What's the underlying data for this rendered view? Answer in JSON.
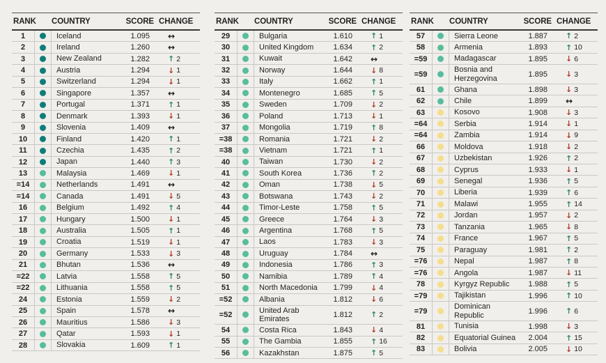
{
  "page": {
    "background": "#f0efeb"
  },
  "header": {
    "rank": "RANK",
    "country": "COUNTRY",
    "score": "SCORE",
    "change": "CHANGE"
  },
  "arrows": {
    "up": "↑",
    "down": "↓",
    "same": "↔"
  },
  "colors": {
    "tier_dark": "#0f7d7a",
    "tier_mid": "#57bd9d",
    "tier_yellow": "#f6dd8c",
    "up": "#2e8473",
    "down": "#b23a29",
    "same": "#1c1c1a",
    "text": "#231f20"
  },
  "tables": [
    {
      "rows": [
        [
          "1",
          "Iceland",
          "1.095",
          "same",
          "",
          "dark"
        ],
        [
          "2",
          "Ireland",
          "1.260",
          "same",
          "",
          "dark"
        ],
        [
          "3",
          "New Zealand",
          "1.282",
          "up",
          "2",
          "dark"
        ],
        [
          "4",
          "Austria",
          "1.294",
          "down",
          "1",
          "dark"
        ],
        [
          "5",
          "Switzerland",
          "1.294",
          "down",
          "1",
          "dark"
        ],
        [
          "6",
          "Singapore",
          "1.357",
          "same",
          "",
          "dark"
        ],
        [
          "7",
          "Portugal",
          "1.371",
          "up",
          "1",
          "dark"
        ],
        [
          "8",
          "Denmark",
          "1.393",
          "down",
          "1",
          "dark"
        ],
        [
          "9",
          "Slovenia",
          "1.409",
          "same",
          "",
          "dark"
        ],
        [
          "10",
          "Finland",
          "1.420",
          "up",
          "1",
          "dark"
        ],
        [
          "11",
          "Czechia",
          "1.435",
          "up",
          "2",
          "dark"
        ],
        [
          "12",
          "Japan",
          "1.440",
          "up",
          "3",
          "dark"
        ],
        [
          "13",
          "Malaysia",
          "1.469",
          "down",
          "1",
          "mid"
        ],
        [
          "=14",
          "Netherlands",
          "1.491",
          "same",
          "",
          "mid"
        ],
        [
          "=14",
          "Canada",
          "1.491",
          "down",
          "5",
          "mid"
        ],
        [
          "16",
          "Belgium",
          "1.492",
          "up",
          "4",
          "mid"
        ],
        [
          "17",
          "Hungary",
          "1.500",
          "down",
          "1",
          "mid"
        ],
        [
          "18",
          "Australia",
          "1.505",
          "up",
          "1",
          "mid"
        ],
        [
          "19",
          "Croatia",
          "1.519",
          "down",
          "1",
          "mid"
        ],
        [
          "20",
          "Germany",
          "1.533",
          "down",
          "3",
          "mid"
        ],
        [
          "21",
          "Bhutan",
          "1.536",
          "same",
          "",
          "mid"
        ],
        [
          "=22",
          "Latvia",
          "1.558",
          "up",
          "5",
          "mid"
        ],
        [
          "=22",
          "Lithuania",
          "1.558",
          "up",
          "5",
          "mid"
        ],
        [
          "24",
          "Estonia",
          "1.559",
          "down",
          "2",
          "mid"
        ],
        [
          "25",
          "Spain",
          "1.578",
          "same",
          "",
          "mid"
        ],
        [
          "26",
          "Mauritius",
          "1.586",
          "down",
          "3",
          "mid"
        ],
        [
          "27",
          "Qatar",
          "1.593",
          "down",
          "1",
          "mid"
        ],
        [
          "28",
          "Slovakia",
          "1.609",
          "up",
          "1",
          "mid"
        ]
      ]
    },
    {
      "rows": [
        [
          "29",
          "Bulgaria",
          "1.610",
          "up",
          "1",
          "mid"
        ],
        [
          "30",
          "United Kingdom",
          "1.634",
          "up",
          "2",
          "mid"
        ],
        [
          "31",
          "Kuwait",
          "1.642",
          "same",
          "",
          "mid"
        ],
        [
          "32",
          "Norway",
          "1.644",
          "down",
          "8",
          "mid"
        ],
        [
          "33",
          "Italy",
          "1.662",
          "up",
          "1",
          "mid"
        ],
        [
          "34",
          "Montenegro",
          "1.685",
          "up",
          "5",
          "mid"
        ],
        [
          "35",
          "Sweden",
          "1.709",
          "down",
          "2",
          "mid"
        ],
        [
          "36",
          "Poland",
          "1.713",
          "down",
          "1",
          "mid"
        ],
        [
          "37",
          "Mongolia",
          "1.719",
          "up",
          "8",
          "mid"
        ],
        [
          "=38",
          "Romania",
          "1.721",
          "down",
          "2",
          "mid"
        ],
        [
          "=38",
          "Vietnam",
          "1.721",
          "up",
          "1",
          "mid"
        ],
        [
          "40",
          "Taiwan",
          "1.730",
          "down",
          "2",
          "mid"
        ],
        [
          "41",
          "South Korea",
          "1.736",
          "up",
          "2",
          "mid"
        ],
        [
          "42",
          "Oman",
          "1.738",
          "down",
          "5",
          "mid"
        ],
        [
          "43",
          "Botswana",
          "1.743",
          "down",
          "2",
          "mid"
        ],
        [
          "44",
          "Timor-Leste",
          "1.758",
          "up",
          "5",
          "mid"
        ],
        [
          "45",
          "Greece",
          "1.764",
          "down",
          "3",
          "mid"
        ],
        [
          "46",
          "Argentina",
          "1.768",
          "up",
          "5",
          "mid"
        ],
        [
          "47",
          "Laos",
          "1.783",
          "down",
          "3",
          "mid"
        ],
        [
          "48",
          "Uruguay",
          "1.784",
          "same",
          "",
          "mid"
        ],
        [
          "49",
          "Indonesia",
          "1.786",
          "up",
          "3",
          "mid"
        ],
        [
          "50",
          "Namibia",
          "1.789",
          "up",
          "4",
          "mid"
        ],
        [
          "51",
          "North Macedonia",
          "1.799",
          "down",
          "4",
          "mid"
        ],
        [
          "=52",
          "Albania",
          "1.812",
          "down",
          "6",
          "mid"
        ],
        [
          "=52",
          "United Arab Emirates",
          "1.812",
          "up",
          "2",
          "mid"
        ],
        [
          "54",
          "Costa Rica",
          "1.843",
          "down",
          "4",
          "mid"
        ],
        [
          "55",
          "The Gambia",
          "1.855",
          "up",
          "16",
          "mid"
        ],
        [
          "56",
          "Kazakhstan",
          "1.875",
          "up",
          "5",
          "mid"
        ]
      ]
    },
    {
      "rows": [
        [
          "57",
          "Sierra Leone",
          "1.887",
          "up",
          "2",
          "mid"
        ],
        [
          "58",
          "Armenia",
          "1.893",
          "up",
          "10",
          "mid"
        ],
        [
          "=59",
          "Madagascar",
          "1.895",
          "down",
          "6",
          "mid"
        ],
        [
          "=59",
          "Bosnia and Herzegovina",
          "1.895",
          "down",
          "3",
          "mid"
        ],
        [
          "61",
          "Ghana",
          "1.898",
          "down",
          "3",
          "mid"
        ],
        [
          "62",
          "Chile",
          "1.899",
          "same",
          "",
          "mid"
        ],
        [
          "63",
          "Kosovo",
          "1.908",
          "down",
          "3",
          "yellow"
        ],
        [
          "=64",
          "Serbia",
          "1.914",
          "down",
          "1",
          "yellow"
        ],
        [
          "=64",
          "Zambia",
          "1.914",
          "down",
          "9",
          "yellow"
        ],
        [
          "66",
          "Moldova",
          "1.918",
          "down",
          "2",
          "yellow"
        ],
        [
          "67",
          "Uzbekistan",
          "1.926",
          "up",
          "2",
          "yellow"
        ],
        [
          "68",
          "Cyprus",
          "1.933",
          "down",
          "1",
          "yellow"
        ],
        [
          "69",
          "Senegal",
          "1.936",
          "up",
          "5",
          "yellow"
        ],
        [
          "70",
          "Liberia",
          "1.939",
          "up",
          "6",
          "yellow"
        ],
        [
          "71",
          "Malawi",
          "1.955",
          "up",
          "14",
          "yellow"
        ],
        [
          "72",
          "Jordan",
          "1.957",
          "down",
          "2",
          "yellow"
        ],
        [
          "73",
          "Tanzania",
          "1.965",
          "down",
          "8",
          "yellow"
        ],
        [
          "74",
          "France",
          "1.967",
          "up",
          "5",
          "yellow"
        ],
        [
          "75",
          "Paraguay",
          "1.981",
          "up",
          "2",
          "yellow"
        ],
        [
          "=76",
          "Nepal",
          "1.987",
          "up",
          "8",
          "yellow"
        ],
        [
          "=76",
          "Angola",
          "1.987",
          "down",
          "11",
          "yellow"
        ],
        [
          "78",
          "Kyrgyz Republic",
          "1.988",
          "up",
          "5",
          "yellow"
        ],
        [
          "=79",
          "Tajikistan",
          "1.996",
          "up",
          "10",
          "yellow"
        ],
        [
          "=79",
          "Dominican Republic",
          "1.996",
          "up",
          "6",
          "yellow"
        ],
        [
          "81",
          "Tunisia",
          "1.998",
          "down",
          "3",
          "yellow"
        ],
        [
          "82",
          "Equatorial Guinea",
          "2.004",
          "up",
          "15",
          "yellow"
        ],
        [
          "83",
          "Bolivia",
          "2.005",
          "down",
          "10",
          "yellow"
        ]
      ]
    }
  ]
}
